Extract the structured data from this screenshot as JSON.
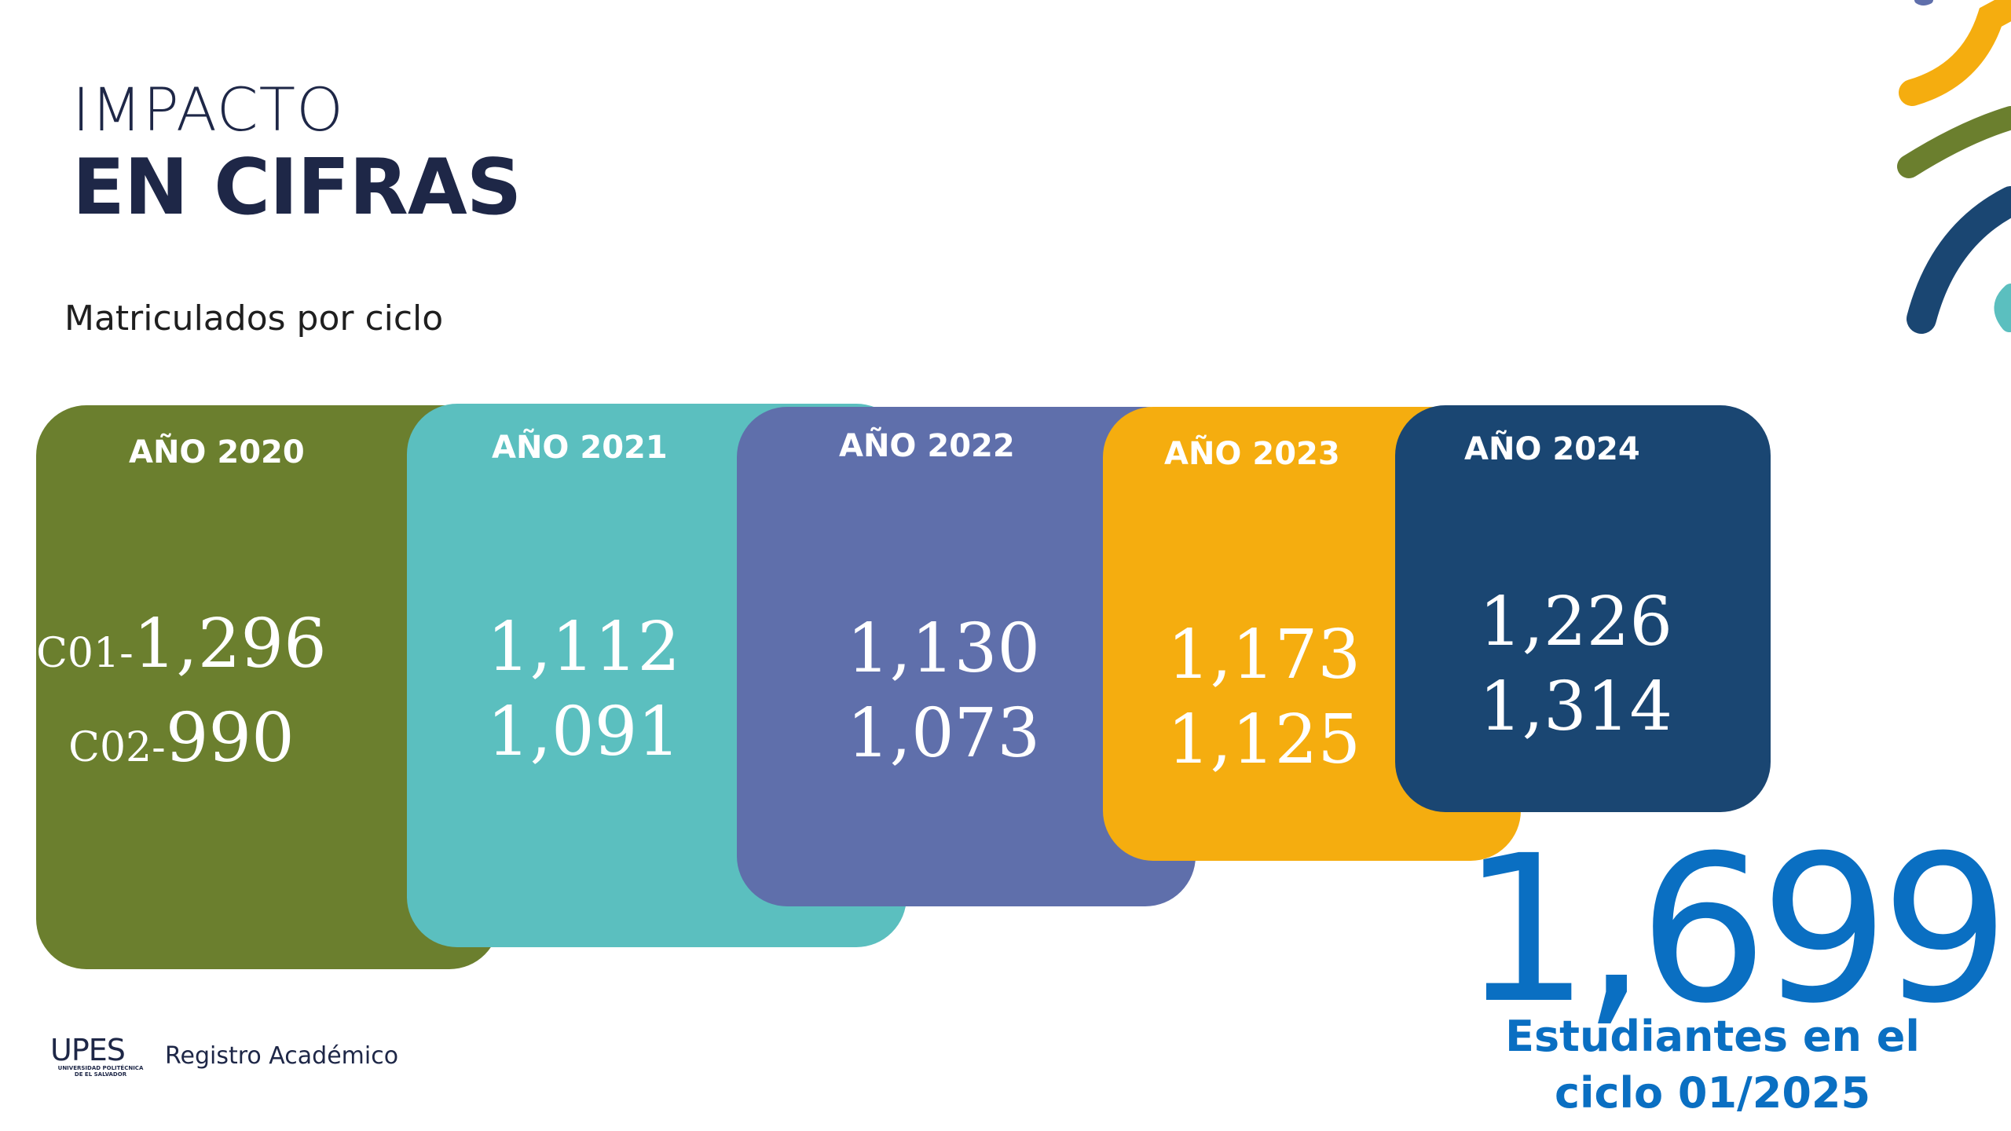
{
  "title": {
    "line1": "IMPACTO",
    "line2": "EN CIFRAS"
  },
  "subtitle": "Matriculados por ciclo",
  "cards": [
    {
      "year_label": "AÑO 2020",
      "color": "#6b7f2e",
      "values": [
        {
          "prefix": "C01-",
          "value": "1,296"
        },
        {
          "prefix": "C02-",
          "value": "990"
        }
      ]
    },
    {
      "year_label": "AÑO 2021",
      "color": "#5bbfbf",
      "values": [
        {
          "prefix": "",
          "value": "1,112"
        },
        {
          "prefix": "",
          "value": "1,091"
        }
      ]
    },
    {
      "year_label": "AÑO 2022",
      "color": "#5f6fab",
      "values": [
        {
          "prefix": "",
          "value": "1,130"
        },
        {
          "prefix": "",
          "value": "1,073"
        }
      ]
    },
    {
      "year_label": "AÑO 2023",
      "color": "#f5ad0f",
      "values": [
        {
          "prefix": "",
          "value": "1,173"
        },
        {
          "prefix": "",
          "value": "1,125"
        }
      ]
    },
    {
      "year_label": "AÑO 2024",
      "color": "#1a4672",
      "values": [
        {
          "prefix": "",
          "value": "1,226"
        },
        {
          "prefix": "",
          "value": "1,314"
        }
      ]
    }
  ],
  "highlight": {
    "number": "1,699",
    "caption_line1": "Estudiantes en el",
    "caption_line2": "ciclo 01/2025",
    "color": "#0a6fc2"
  },
  "footer": {
    "logo_word": "UPES",
    "logo_sub_line1": "UNIVERSIDAD POLITÉCNICA",
    "logo_sub_line2": "DE EL SALVADOR",
    "department": "Registro Académico"
  },
  "decoration": {
    "colors": [
      "#f5ad0f",
      "#6b7f2e",
      "#1a4672",
      "#5bbfbf",
      "#5f6fab"
    ]
  }
}
